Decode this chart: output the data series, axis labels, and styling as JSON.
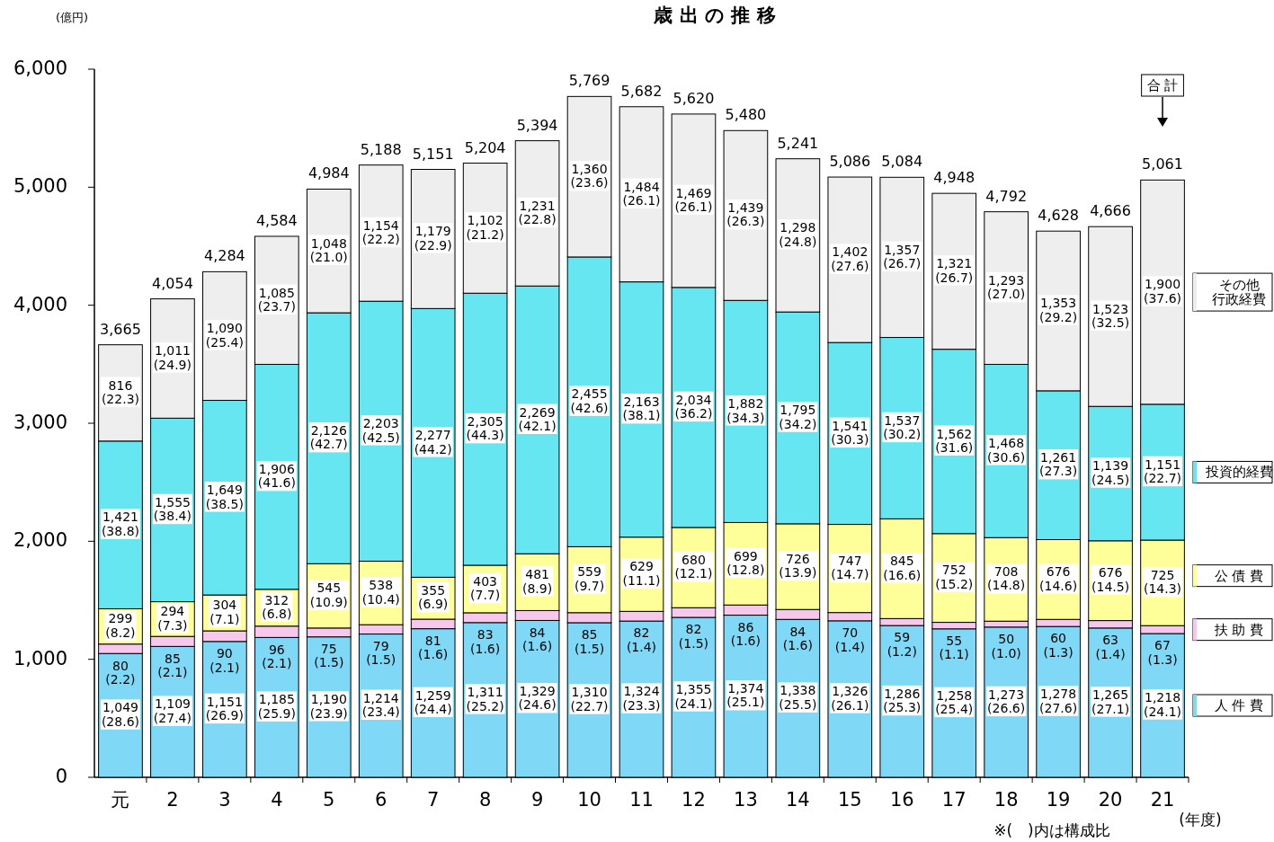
{
  "chart_data": {
    "type": "bar",
    "stacked": true,
    "title": "歳 出 の 推 移",
    "ylabel": "(億円)",
    "xlabel": "(年度)",
    "categories": [
      "元",
      "2",
      "3",
      "4",
      "5",
      "6",
      "7",
      "8",
      "9",
      "10",
      "11",
      "12",
      "13",
      "14",
      "15",
      "16",
      "17",
      "18",
      "19",
      "20",
      "21"
    ],
    "series": [
      {
        "name": "人 件 費",
        "color": "#7fd8f5",
        "values": [
          1049,
          1109,
          1151,
          1185,
          1190,
          1214,
          1259,
          1311,
          1329,
          1310,
          1324,
          1355,
          1374,
          1338,
          1326,
          1286,
          1258,
          1273,
          1278,
          1265,
          1218
        ],
        "value_labels": [
          "1,049\n(28.6)",
          "1,109\n(27.4)",
          "1,151\n(26.9)",
          "1,185\n(25.9)",
          "1,190\n(23.9)",
          "1,214\n(23.4)",
          "1,259\n(24.4)",
          "1,311\n(25.2)",
          "1,329\n(24.6)",
          "1,310\n(22.7)",
          "1,324\n(23.3)",
          "1,355\n(24.1)",
          "1,374\n(25.1)",
          "1,338\n(25.5)",
          "1,326\n(26.1)",
          "1,286\n(25.3)",
          "1,258\n(25.4)",
          "1,273\n(26.6)",
          "1,278\n(27.6)",
          "1,265\n(27.1)",
          "1,218\n(24.1)"
        ]
      },
      {
        "name": "扶 助 費",
        "color": "#f7c8ec",
        "values": [
          80,
          85,
          90,
          96,
          75,
          79,
          81,
          83,
          84,
          85,
          82,
          82,
          86,
          84,
          70,
          59,
          55,
          50,
          60,
          63,
          67
        ],
        "value_labels": [
          "80\n(2.2)",
          "85\n(2.1)",
          "90\n(2.1)",
          "96\n(2.1)",
          "75\n(1.5)",
          "79\n(1.5)",
          "81\n(1.6)",
          "83\n(1.6)",
          "84\n(1.6)",
          "85\n(1.5)",
          "82\n(1.4)",
          "82\n(1.5)",
          "86\n(1.6)",
          "84\n(1.6)",
          "70\n(1.4)",
          "59\n(1.2)",
          "55\n(1.1)",
          "50\n(1.0)",
          "60\n(1.3)",
          "63\n(1.4)",
          "67\n(1.3)"
        ]
      },
      {
        "name": "公 債 費",
        "color": "#ffff99",
        "values": [
          299,
          294,
          304,
          312,
          545,
          538,
          355,
          403,
          481,
          559,
          629,
          680,
          699,
          726,
          747,
          845,
          752,
          708,
          676,
          676,
          725
        ],
        "value_labels": [
          "299\n(8.2)",
          "294\n(7.3)",
          "304\n(7.1)",
          "312\n(6.8)",
          "545\n(10.9)",
          "538\n(10.4)",
          "355\n(6.9)",
          "403\n(7.7)",
          "481\n(8.9)",
          "559\n(9.7)",
          "629\n(11.1)",
          "680\n(12.1)",
          "699\n(12.8)",
          "726\n(13.9)",
          "747\n(14.7)",
          "845\n(16.6)",
          "752\n(15.2)",
          "708\n(14.8)",
          "676\n(14.6)",
          "676\n(14.5)",
          "725\n(14.3)"
        ]
      },
      {
        "name": "投資的経費",
        "color": "#66e6f0",
        "values": [
          1421,
          1555,
          1649,
          1906,
          2126,
          2203,
          2277,
          2305,
          2269,
          2455,
          2163,
          2034,
          1882,
          1795,
          1541,
          1537,
          1562,
          1468,
          1261,
          1139,
          1151
        ],
        "value_labels": [
          "1,421\n(38.8)",
          "1,555\n(38.4)",
          "1,649\n(38.5)",
          "1,906\n(41.6)",
          "2,126\n(42.7)",
          "2,203\n(42.5)",
          "2,277\n(44.2)",
          "2,305\n(44.3)",
          "2,269\n(42.1)",
          "2,455\n(42.6)",
          "2,163\n(38.1)",
          "2,034\n(36.2)",
          "1,882\n(34.3)",
          "1,795\n(34.2)",
          "1,541\n(30.3)",
          "1,537\n(30.2)",
          "1,562\n(31.6)",
          "1,468\n(30.6)",
          "1,261\n(27.3)",
          "1,139\n(24.5)",
          "1,151\n(22.7)"
        ]
      },
      {
        "name": "その他行政経費",
        "color": "#eeeeee",
        "values": [
          816,
          1011,
          1090,
          1085,
          1048,
          1154,
          1179,
          1102,
          1231,
          1360,
          1484,
          1469,
          1439,
          1298,
          1402,
          1357,
          1321,
          1293,
          1353,
          1523,
          1900
        ],
        "value_labels": [
          "816\n(22.3)",
          "1,011\n(24.9)",
          "1,090\n(25.4)",
          "1,085\n(23.7)",
          "1,048\n(21.0)",
          "1,154\n(22.2)",
          "1,179\n(22.9)",
          "1,102\n(21.2)",
          "1,231\n(22.8)",
          "1,360\n(23.6)",
          "1,484\n(26.1)",
          "1,469\n(26.1)",
          "1,439\n(26.3)",
          "1,298\n(24.8)",
          "1,402\n(27.6)",
          "1,357\n(26.7)",
          "1,321\n(26.7)",
          "1,293\n(27.0)",
          "1,353\n(29.2)",
          "1,523\n(32.5)",
          "1,900\n(37.6)"
        ]
      }
    ],
    "totals": [
      "3,665",
      "4,054",
      "4,284",
      "4,584",
      "4,984",
      "5,188",
      "5,151",
      "5,204",
      "5,394",
      "5,769",
      "5,682",
      "5,620",
      "5,480",
      "5,241",
      "5,086",
      "5,084",
      "4,948",
      "4,792",
      "4,628",
      "4,666",
      "5,061"
    ],
    "ylim": [
      0,
      6000
    ],
    "yticks": [
      0,
      {
        "value": 1000,
        "label": "1,000"
      },
      {
        "value": 2000,
        "label": "2,000"
      },
      {
        "value": 3000,
        "label": "3,000"
      },
      {
        "value": 4000,
        "label": "4,000"
      },
      {
        "value": 5000,
        "label": "5,000"
      },
      {
        "value": 6000,
        "label": "6,000"
      }
    ],
    "legend": "right",
    "annotations": [
      "合 計",
      "※(　)内は構成比"
    ]
  }
}
